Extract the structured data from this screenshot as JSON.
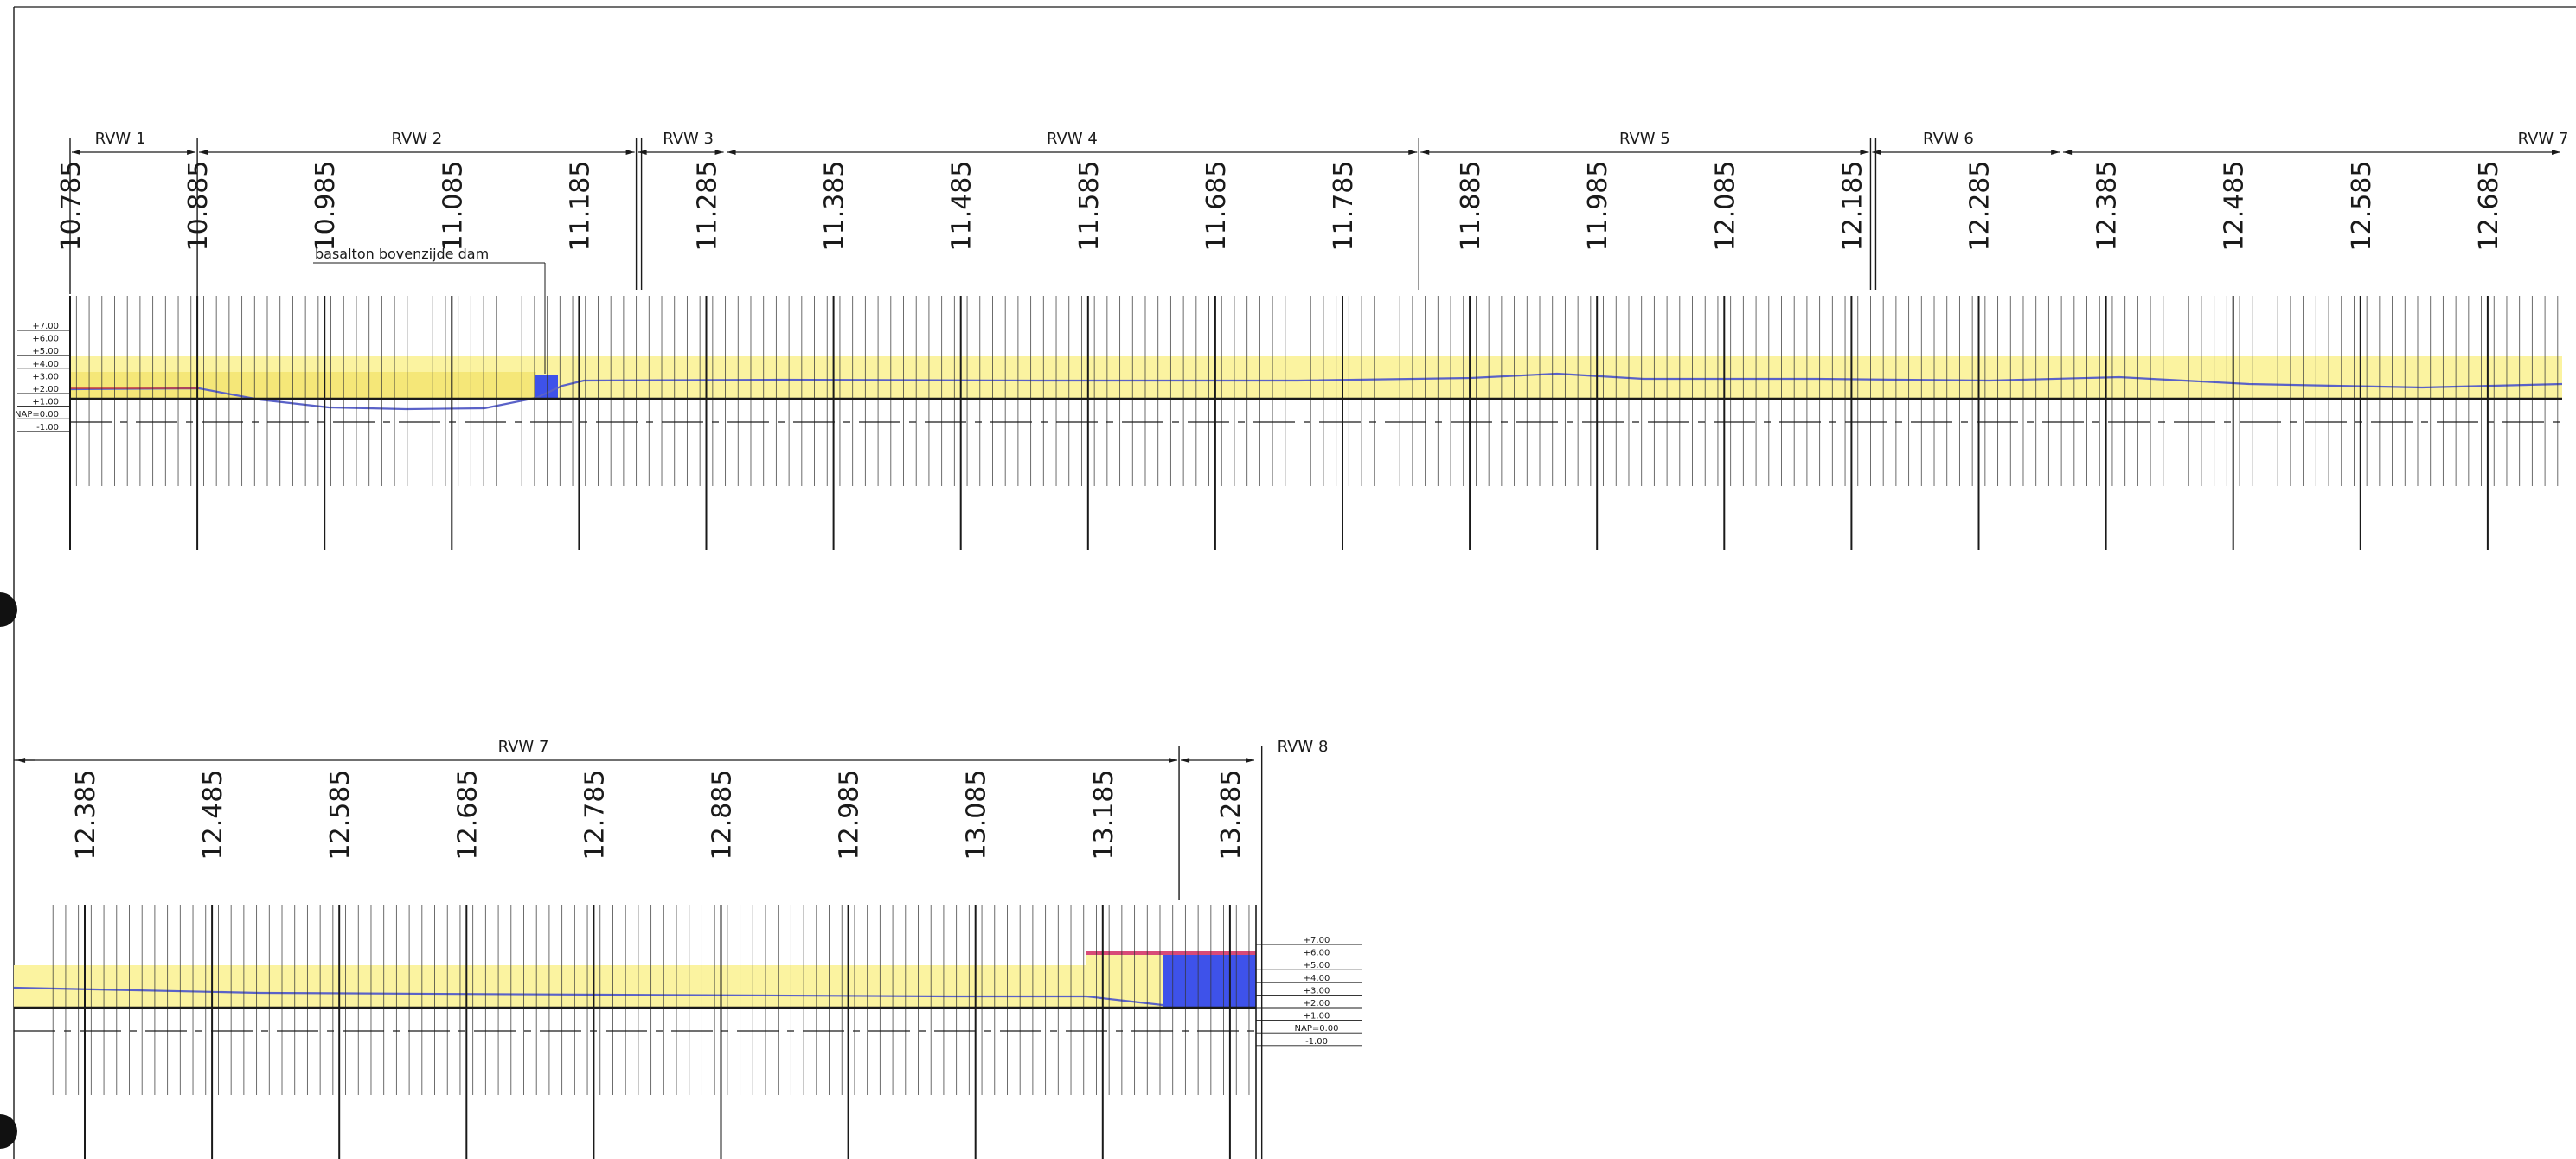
{
  "colors": {
    "line": "#1a1a1a",
    "fill_yellow": "#fbf3a0",
    "fill_yellow_dark": "#f2df5e",
    "profile_blue": "#5a62c8",
    "block_blue": "#3e52ea",
    "top_red": "#d84a78",
    "paper": "#ffffff",
    "mark_black": "#111111"
  },
  "icons": [
    "hole-punch-mark"
  ],
  "top_band": {
    "zones": [
      {
        "label": "RVW 1",
        "from": 10.785,
        "to": 10.885
      },
      {
        "label": "RVW 2",
        "from": 10.885,
        "to": 11.23
      },
      {
        "label": "RVW 3",
        "from": 11.23,
        "to": 11.3
      },
      {
        "label": "RVW 4",
        "from": 11.3,
        "to": 11.845
      },
      {
        "label": "RVW 5",
        "from": 11.845,
        "to": 12.2
      },
      {
        "label": "RVW 6",
        "from": 12.2,
        "to": 12.35
      },
      {
        "label": "RVW 7",
        "from": 12.35,
        "to": 12.75
      }
    ],
    "chainage_labels": [
      "10.785",
      "10.885",
      "10.985",
      "11.085",
      "11.185",
      "11.285",
      "11.385",
      "11.485",
      "11.585",
      "11.685",
      "11.785",
      "11.885",
      "11.985",
      "12.085",
      "12.185",
      "12.285",
      "12.385",
      "12.485",
      "12.585",
      "12.685"
    ],
    "annotation": {
      "text": "basalton bovenzijde dam",
      "at": 11.155
    },
    "elevation_labels": [
      "+7.00",
      "+6.00",
      "+5.00",
      "+4.00",
      "+3.00",
      "+2.00",
      "+1.00",
      "NAP=0.00",
      "-1.00"
    ]
  },
  "bottom_band": {
    "zones": [
      {
        "label": "RVW 7",
        "from": 12.33,
        "to": 13.245
      },
      {
        "label": "RVW 8",
        "from": 13.245,
        "to": 13.31
      }
    ],
    "chainage_labels": [
      "12.385",
      "12.485",
      "12.585",
      "12.685",
      "12.785",
      "12.885",
      "12.985",
      "13.085",
      "13.185",
      "13.285"
    ],
    "elevation_labels": [
      "+7.00",
      "+6.00",
      "+5.00",
      "+4.00",
      "+3.00",
      "+2.00",
      "+1.00",
      "NAP=0.00",
      "-1.00"
    ]
  }
}
